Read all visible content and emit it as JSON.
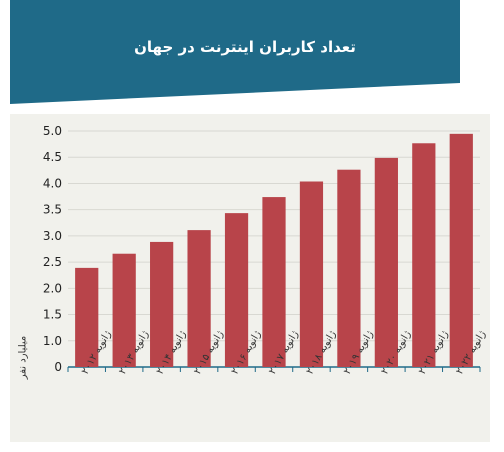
{
  "title": "تعداد کاربران اینترنت در جهان",
  "colors": {
    "banner": "#1f6a88",
    "bar": "#b8444a",
    "panel": "#f1f1ec",
    "grid": "#d8d8d2",
    "axis": "#1f6a88"
  },
  "chart_data": {
    "type": "bar",
    "title": "تعداد کاربران اینترنت در جهان",
    "xlabel": "",
    "ylabel": "میلیارد نفر",
    "ylim": [
      0,
      5.0
    ],
    "yticks": [
      "0",
      "1.0",
      "1.5",
      "2.0",
      "2.5",
      "3.0",
      "3.5",
      "4.0",
      "4.5",
      "5.0"
    ],
    "ytick_values": [
      0,
      1.0,
      1.5,
      2.0,
      2.5,
      3.0,
      3.5,
      4.0,
      4.5,
      5.0
    ],
    "grid": true,
    "categories": [
      "ژانویه ۲۰۱۲",
      "ژانویه ۲۰۱۳",
      "ژانویه ۲۰۱۴",
      "ژانویه ۲۰۱۵",
      "ژانویه ۲۰۱۶",
      "ژانویه ۲۰۱۷",
      "ژانویه ۲۰۱۸",
      "ژانویه ۲۰۱۹",
      "ژانویه ۲۰۲۰",
      "ژانویه ۲۰۲۱",
      "ژانویه ۲۰۲۲"
    ],
    "values": [
      2.1,
      2.4,
      2.65,
      2.9,
      3.26,
      3.6,
      3.93,
      4.18,
      4.43,
      4.74,
      4.94
    ]
  }
}
